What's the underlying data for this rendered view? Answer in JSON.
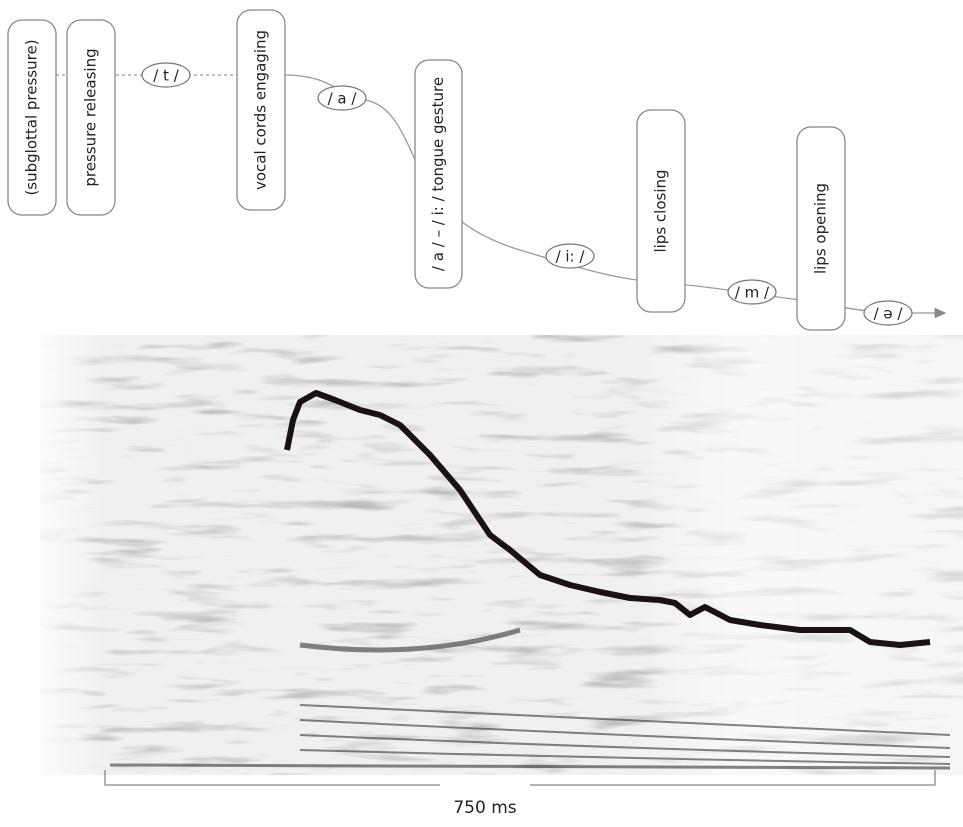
{
  "gestures": [
    {
      "label": "(subglottal pressure)"
    },
    {
      "label": "pressure releasing"
    },
    {
      "label": "vocal cords engaging"
    },
    {
      "label": "/ a / – / i: / tongue gesture"
    },
    {
      "label": "lips closing"
    },
    {
      "label": "lips opening"
    }
  ],
  "phonemes": [
    "/ t /",
    "/ a /",
    "/ i: /",
    "/ m /",
    "/ ə /"
  ],
  "scale": {
    "label": "750 ms"
  }
}
